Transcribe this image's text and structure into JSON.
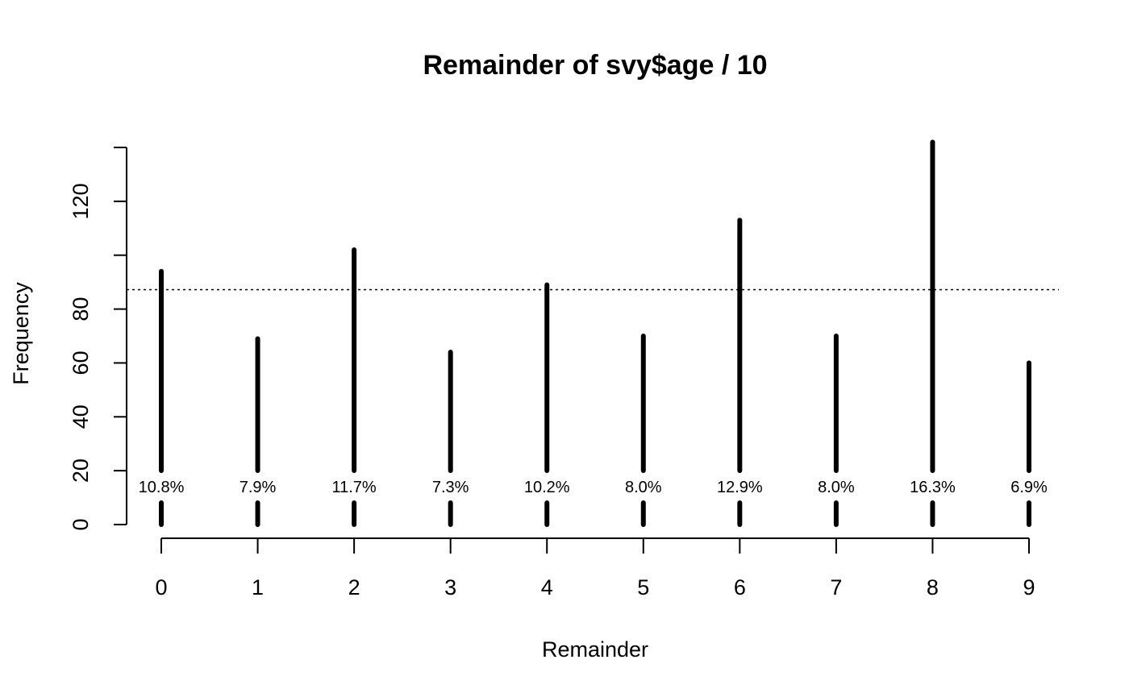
{
  "chart_data": {
    "type": "bar",
    "title": "Remainder of svy$age / 10",
    "xlabel": "Remainder",
    "ylabel": "Frequency",
    "categories": [
      "0",
      "1",
      "2",
      "3",
      "4",
      "5",
      "6",
      "7",
      "8",
      "9"
    ],
    "values": [
      94,
      69,
      102,
      64,
      89,
      70,
      113,
      70,
      142,
      60
    ],
    "percent_labels": [
      "10.8%",
      "7.9%",
      "11.7%",
      "7.3%",
      "10.2%",
      "8.0%",
      "12.9%",
      "8.0%",
      "16.3%",
      "6.9%"
    ],
    "reference_line": 87.2,
    "reference_line_style": "dotted",
    "y_ticks": [
      0,
      20,
      40,
      60,
      80,
      100,
      120,
      140
    ],
    "y_tick_labels": [
      "0",
      "20",
      "40",
      "60",
      "80",
      "",
      "120",
      ""
    ],
    "ylim": [
      0,
      140
    ],
    "grid": false,
    "bar_color": "#000000"
  }
}
